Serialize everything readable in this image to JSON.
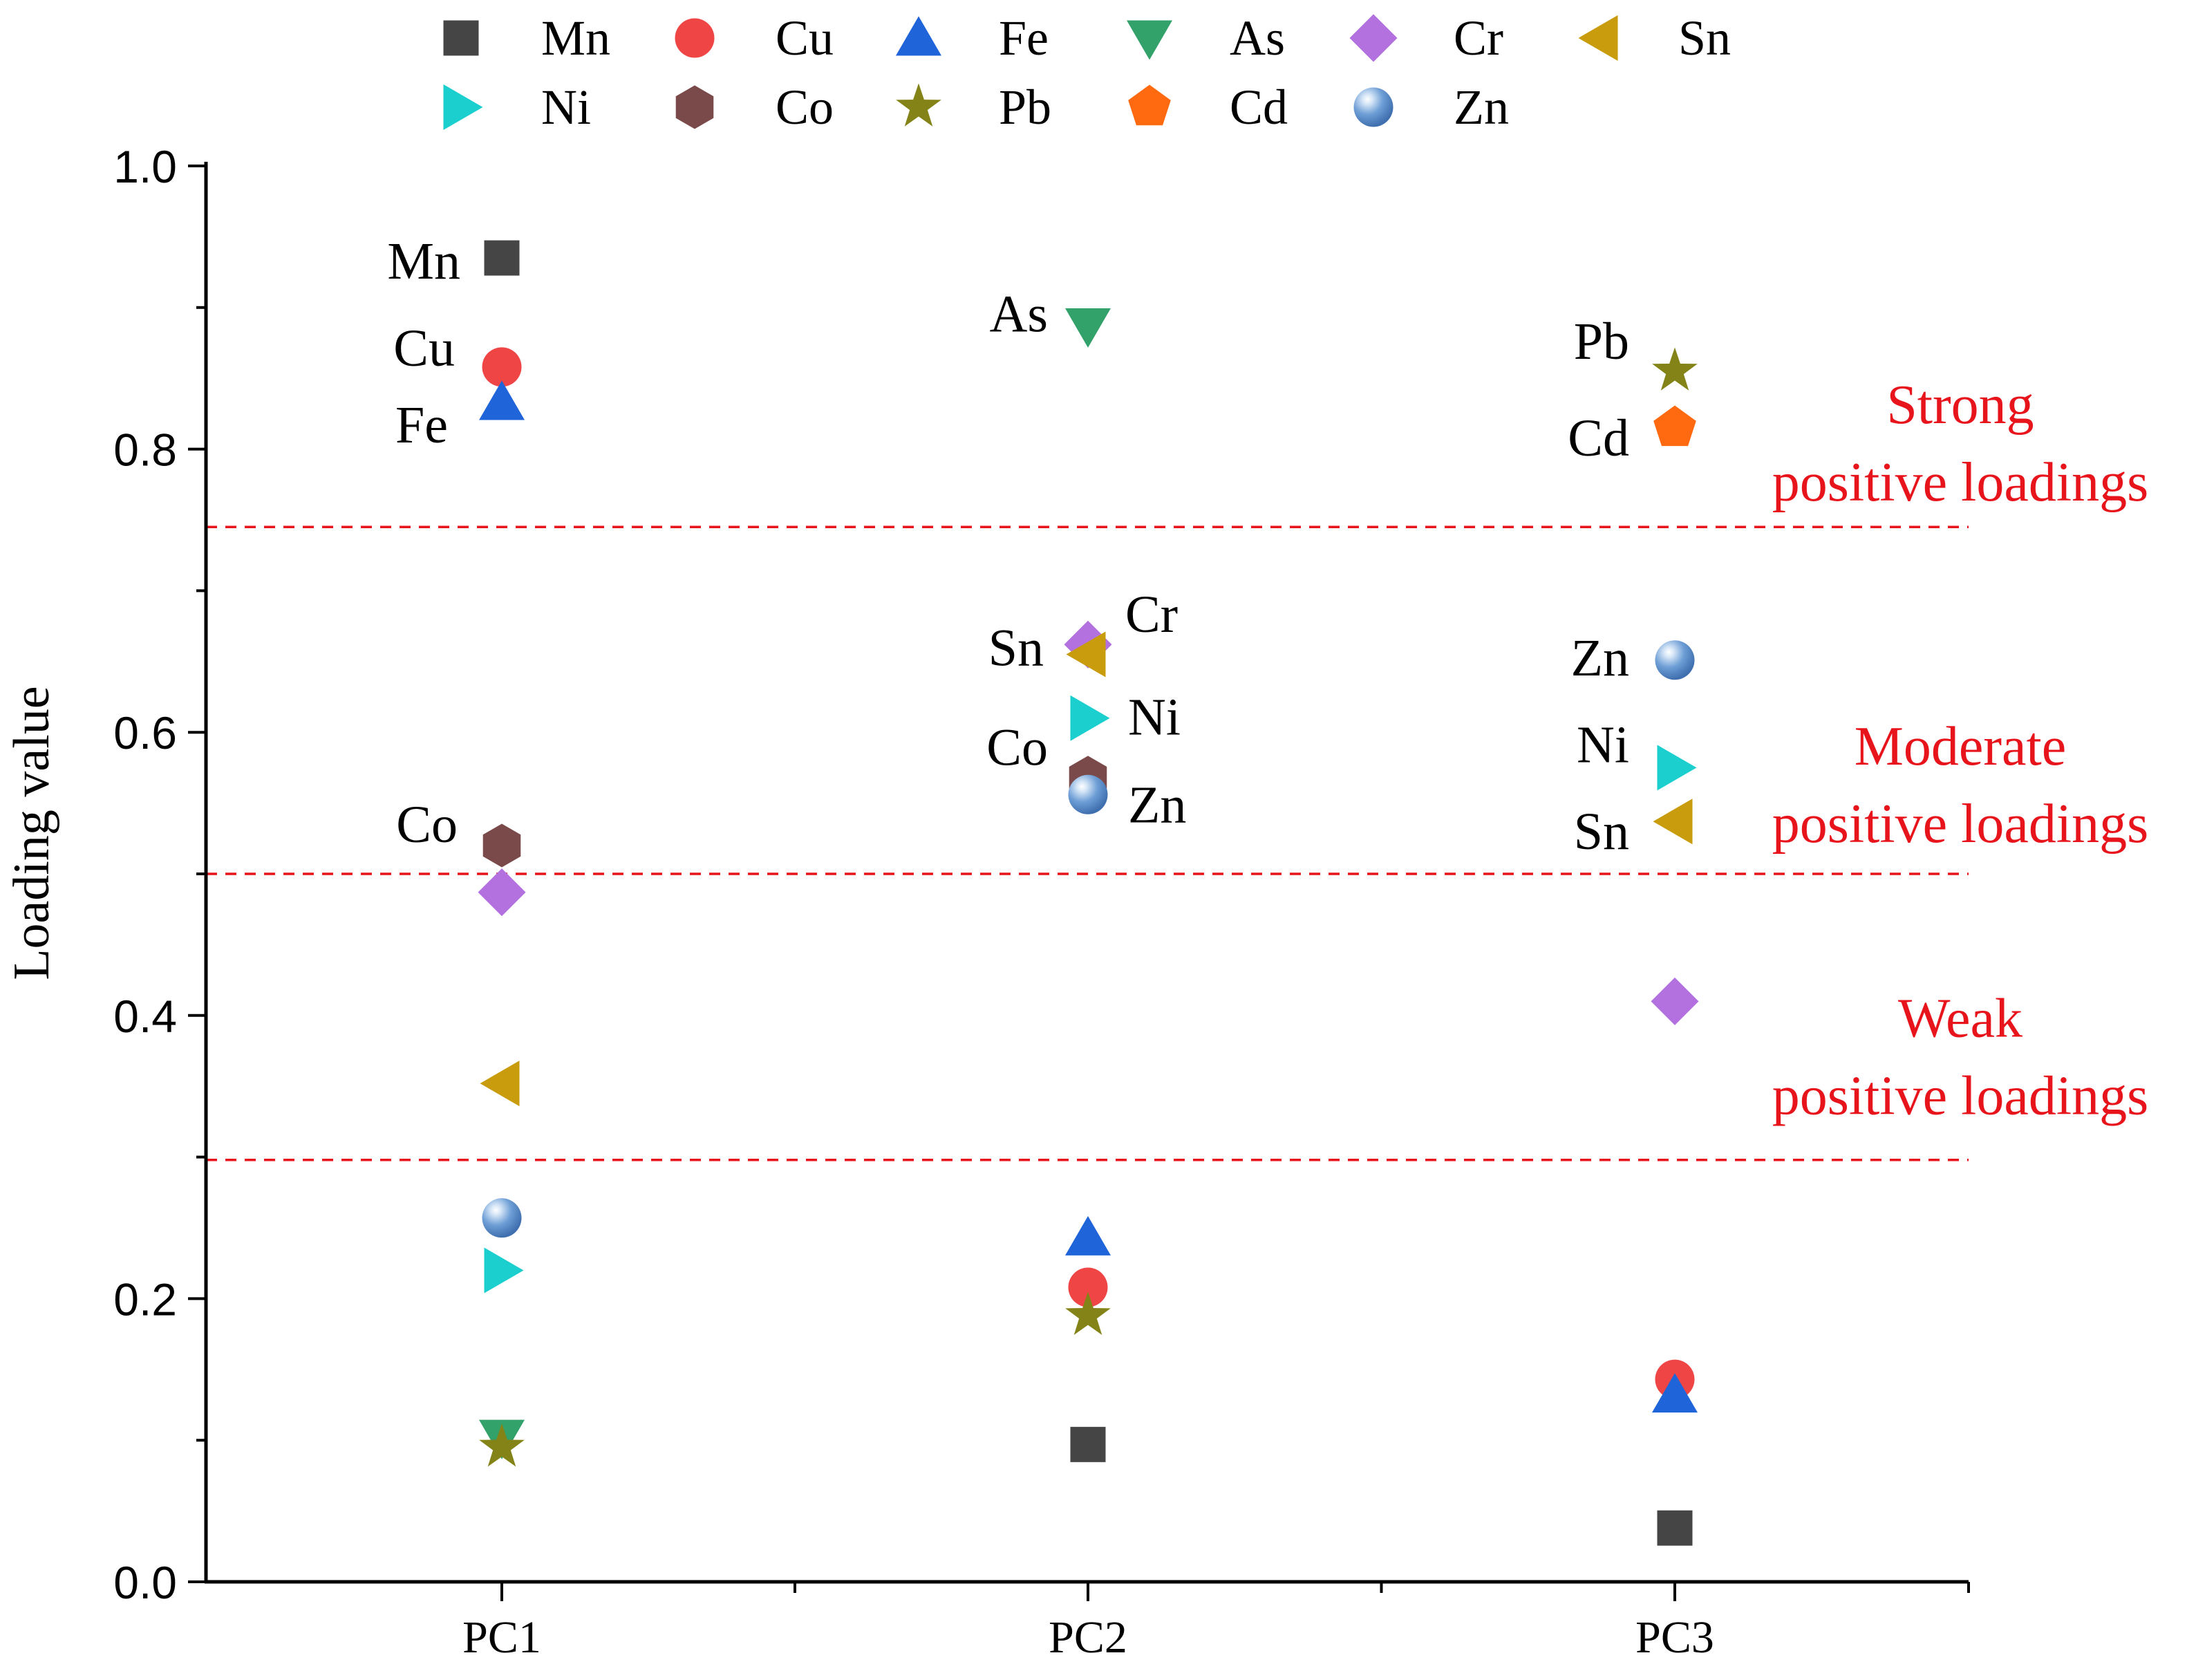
{
  "chart_data": {
    "type": "scatter",
    "categories": [
      "PC1",
      "PC2",
      "PC3"
    ],
    "ylabel": "Loading value",
    "xlabel": "",
    "ylim": [
      0,
      1.0
    ],
    "yticks": [
      "0.0",
      "0.2",
      "0.4",
      "0.6",
      "0.8",
      "1.0"
    ],
    "grid": false,
    "legend_position": "top",
    "legend": [
      {
        "name": "Mn",
        "marker": "square",
        "color": "#454545"
      },
      {
        "name": "Cu",
        "marker": "circle",
        "color": "#f04545"
      },
      {
        "name": "Fe",
        "marker": "triangle-up",
        "color": "#1f64d9"
      },
      {
        "name": "As",
        "marker": "triangle-down",
        "color": "#33a16a"
      },
      {
        "name": "Cr",
        "marker": "diamond",
        "color": "#b371e0"
      },
      {
        "name": "Sn",
        "marker": "triangle-left",
        "color": "#c89c0c"
      },
      {
        "name": "Ni",
        "marker": "triangle-right",
        "color": "#1ccfcf"
      },
      {
        "name": "Co",
        "marker": "hexagon",
        "color": "#7a4a4a"
      },
      {
        "name": "Pb",
        "marker": "star",
        "color": "#838317"
      },
      {
        "name": "Cd",
        "marker": "pentagon",
        "color": "#ff6a10"
      },
      {
        "name": "Zn",
        "marker": "sphere",
        "color": "#5d8fcc"
      }
    ],
    "series": [
      {
        "name": "Mn",
        "values": [
          0.935,
          0.097,
          0.038
        ]
      },
      {
        "name": "Cu",
        "values": [
          0.858,
          0.208,
          0.143
        ]
      },
      {
        "name": "Fe",
        "values": [
          0.833,
          0.243,
          0.132
        ]
      },
      {
        "name": "As",
        "values": [
          0.102,
          0.887,
          null
        ]
      },
      {
        "name": "Cr",
        "values": [
          0.487,
          0.662,
          0.41
        ]
      },
      {
        "name": "Sn",
        "values": [
          0.352,
          0.655,
          0.537
        ]
      },
      {
        "name": "Ni",
        "values": [
          0.22,
          0.61,
          0.575
        ]
      },
      {
        "name": "Co",
        "values": [
          0.52,
          0.568,
          null
        ]
      },
      {
        "name": "Pb",
        "values": [
          0.095,
          0.188,
          0.855
        ]
      },
      {
        "name": "Cd",
        "values": [
          null,
          null,
          0.815
        ]
      },
      {
        "name": "Zn",
        "values": [
          0.257,
          0.556,
          0.651
        ]
      }
    ],
    "thresholds": [
      0.745,
      0.5,
      0.298
    ],
    "point_labels": [
      {
        "text": "Mn",
        "cat": 0,
        "value": 0.935
      },
      {
        "text": "Cu",
        "cat": 0,
        "value": 0.858
      },
      {
        "text": "Fe",
        "cat": 0,
        "value": 0.833
      },
      {
        "text": "Co",
        "cat": 0,
        "value": 0.52
      },
      {
        "text": "As",
        "cat": 1,
        "value": 0.887
      },
      {
        "text": "Sn",
        "cat": 1,
        "value": 0.655
      },
      {
        "text": "Cr",
        "cat": 1,
        "value": 0.662
      },
      {
        "text": "Ni",
        "cat": 1,
        "value": 0.61
      },
      {
        "text": "Co",
        "cat": 1,
        "value": 0.568
      },
      {
        "text": "Zn",
        "cat": 1,
        "value": 0.556
      },
      {
        "text": "Pb",
        "cat": 2,
        "value": 0.855
      },
      {
        "text": "Cd",
        "cat": 2,
        "value": 0.815
      },
      {
        "text": "Zn",
        "cat": 2,
        "value": 0.651
      },
      {
        "text": "Ni",
        "cat": 2,
        "value": 0.575
      },
      {
        "text": "Sn",
        "cat": 2,
        "value": 0.537
      }
    ],
    "annotations": [
      {
        "line1": "Strong",
        "line2": "positive loadings"
      },
      {
        "line1": "Moderate",
        "line2": "positive loadings"
      },
      {
        "line1": "Weak",
        "line2": "positive loadings"
      }
    ],
    "annotation_color": "#e8141c",
    "threshold_color": "#e8141c"
  }
}
